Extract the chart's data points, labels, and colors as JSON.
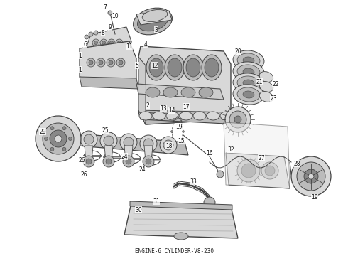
{
  "caption": "ENGINE-6 CYLINDER-V8-230",
  "caption_fontsize": 5.5,
  "background_color": "#ffffff",
  "fig_width": 4.9,
  "fig_height": 3.6,
  "dpi": 100,
  "label_color": "#111111",
  "line_color": "#444444",
  "fill_light": "#d8d8d8",
  "fill_mid": "#bbbbbb",
  "fill_dark": "#888888"
}
